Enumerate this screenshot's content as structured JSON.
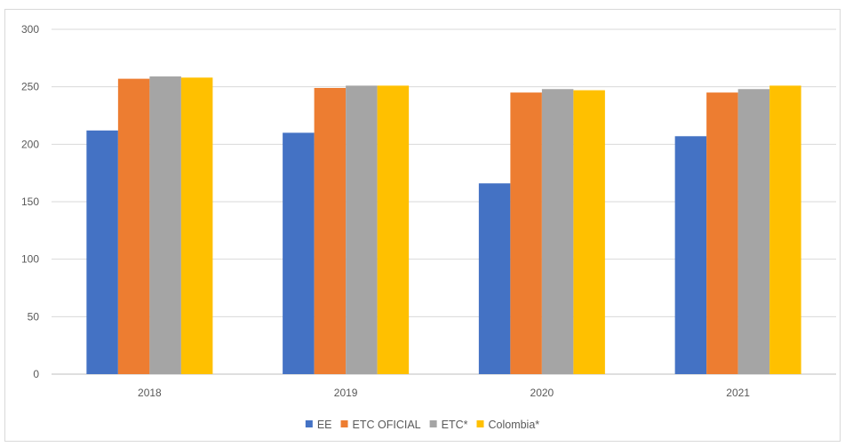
{
  "chart_data": {
    "type": "bar",
    "categories": [
      "2018",
      "2019",
      "2020",
      "2021"
    ],
    "series": [
      {
        "name": "EE",
        "color": "#4472C4",
        "values": [
          212,
          210,
          166,
          207
        ]
      },
      {
        "name": "ETC OFICIAL",
        "color": "#ED7D31",
        "values": [
          257,
          249,
          245,
          245
        ]
      },
      {
        "name": "ETC*",
        "color": "#A5A5A5",
        "values": [
          259,
          251,
          248,
          248
        ]
      },
      {
        "name": "Colombia*",
        "color": "#FFC000",
        "values": [
          258,
          251,
          247,
          251
        ]
      }
    ],
    "ylim": [
      0,
      300
    ],
    "yticks": [
      0,
      50,
      100,
      150,
      200,
      250,
      300
    ],
    "grid": true,
    "legend_position": "bottom"
  }
}
